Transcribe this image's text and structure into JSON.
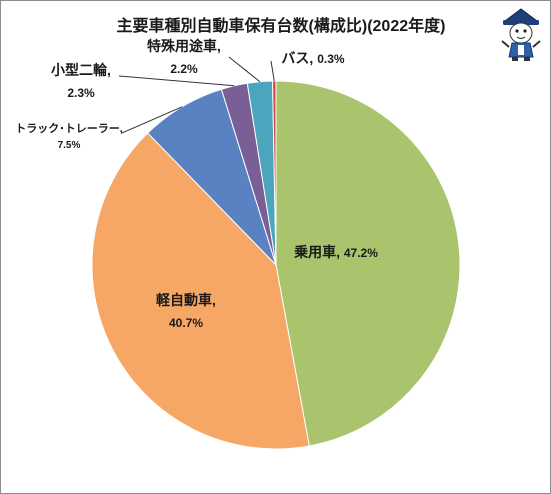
{
  "chart_data": {
    "type": "pie",
    "title": "主要車種別自動車保有台数(構成比)(2022年度)",
    "categories": [
      "乗用車",
      "軽自動車",
      "トラック･トレーラー",
      "小型二輪",
      "特殊用途車",
      "バス"
    ],
    "values": [
      47.2,
      40.7,
      7.5,
      2.3,
      2.2,
      0.3
    ],
    "value_labels": [
      "47.2%",
      "40.7%",
      "7.5%",
      "2.3%",
      "2.2%",
      "0.3%"
    ],
    "colors": [
      "#a9c46d",
      "#f6a765",
      "#5a82c2",
      "#7a5f96",
      "#4aa5bd",
      "#d34a3f"
    ],
    "legend": "none",
    "start_angle_deg": 0,
    "direction": "clockwise"
  },
  "mascot": {
    "icon": "mascot-character-icon"
  }
}
